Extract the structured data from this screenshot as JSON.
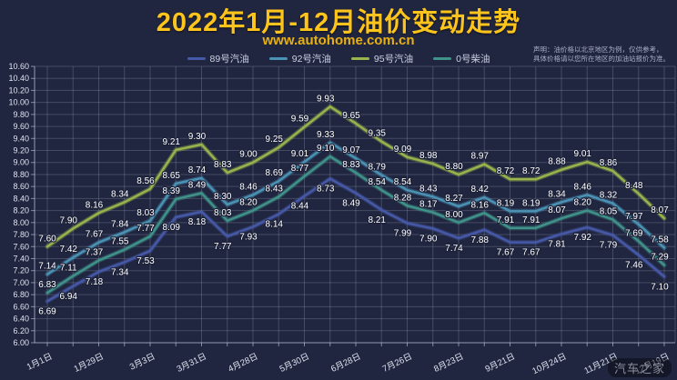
{
  "page": {
    "title": "2022年1月-12月油价变动走势",
    "subtitle": "www.autohome.com.cn",
    "disclaimer_line1": "声明：油价格以北京地区为例，仅供参考，",
    "disclaimer_line2": "具体价格请以您所在地区的加油站报价为准。",
    "watermark": "汽车之家"
  },
  "colors": {
    "background": "#212640",
    "title": "#fdc51c",
    "subtitle": "#e7b013",
    "grid": "rgba(210,218,240,0.20)",
    "axis": "rgba(210,218,240,0.55)",
    "tick_label": "#dfe3f0",
    "data_label": "#ffffff"
  },
  "chart_data": {
    "type": "line",
    "title": "2022年1月-12月油价变动走势",
    "xlabel": "",
    "ylabel": "",
    "ylim": [
      6.0,
      10.6
    ],
    "y_tick_step": 0.2,
    "grid": true,
    "legend_position": "top",
    "num_points": 25,
    "x_tick_labels": [
      "1月1日",
      "1月29日",
      "3月3日",
      "3月31日",
      "4月28日",
      "5月30日",
      "6月28日",
      "7月26日",
      "8月23日",
      "9月21日",
      "10月24日",
      "11月21日",
      "12月19日"
    ],
    "x_labels_on_every_other_point": true,
    "series": [
      {
        "name": "89号汽油",
        "color": "#4659a8",
        "label_side": "below",
        "values": [
          6.69,
          6.94,
          7.18,
          7.34,
          7.53,
          8.09,
          8.18,
          7.77,
          7.93,
          8.14,
          8.44,
          8.73,
          8.49,
          8.21,
          7.99,
          7.9,
          7.74,
          7.88,
          7.67,
          7.67,
          7.81,
          7.92,
          7.79,
          7.46,
          7.1
        ]
      },
      {
        "name": "92号汽油",
        "color": "#4a93b5",
        "label_side": "above",
        "values": [
          7.14,
          7.42,
          7.67,
          7.84,
          8.03,
          8.65,
          8.74,
          8.3,
          8.46,
          8.69,
          9.01,
          9.33,
          9.07,
          8.79,
          8.54,
          8.43,
          8.27,
          8.42,
          8.19,
          8.19,
          8.34,
          8.46,
          8.32,
          7.97,
          7.58
        ]
      },
      {
        "name": "95号汽油",
        "color": "#98b44c",
        "label_side": "above",
        "values": [
          7.6,
          7.9,
          8.16,
          8.34,
          8.56,
          9.21,
          9.3,
          8.83,
          9.0,
          9.25,
          9.59,
          9.93,
          9.65,
          9.35,
          9.09,
          8.98,
          8.8,
          8.97,
          8.72,
          8.72,
          8.88,
          9.01,
          8.86,
          8.48,
          8.07
        ]
      },
      {
        "name": "0号柴油",
        "color": "#3f938a",
        "label_side": "above",
        "values": [
          6.83,
          7.11,
          7.37,
          7.55,
          7.77,
          8.39,
          8.49,
          8.03,
          8.2,
          8.43,
          8.77,
          9.1,
          8.83,
          8.54,
          8.28,
          8.17,
          8.0,
          8.16,
          7.91,
          7.91,
          8.07,
          8.2,
          8.05,
          7.69,
          7.29
        ]
      }
    ]
  }
}
